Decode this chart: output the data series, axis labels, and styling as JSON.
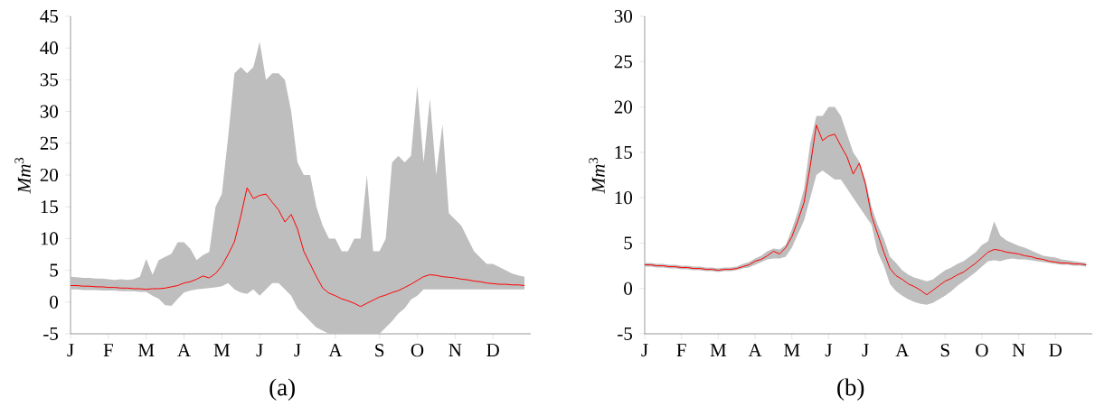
{
  "chart_data": [
    {
      "type": "line",
      "ylabel": "*Mm*$^{3}$",
      "annotations": [
        "(a)"
      ],
      "categories": [
        "J",
        null,
        null,
        null,
        null,
        null,
        "F",
        null,
        null,
        null,
        null,
        null,
        "M",
        null,
        null,
        null,
        null,
        null,
        "A",
        null,
        null,
        null,
        null,
        null,
        "M",
        null,
        null,
        null,
        null,
        null,
        "J",
        null,
        null,
        null,
        null,
        null,
        "J",
        null,
        null,
        null,
        null,
        null,
        "A",
        null,
        null,
        null,
        null,
        null,
        null,
        "S",
        null,
        null,
        null,
        null,
        null,
        "O",
        null,
        null,
        null,
        null,
        null,
        "N",
        null,
        null,
        null,
        null,
        null,
        "D",
        null,
        null,
        null,
        null,
        null
      ],
      "ylim": [
        -5,
        45
      ],
      "yticks": [
        -5,
        0,
        5,
        10,
        15,
        20,
        25,
        30,
        35,
        40,
        45
      ],
      "series": [
        {
          "color": "#ff0000",
          "values": [
            2.6,
            2.6,
            2.5,
            2.5,
            2.4,
            2.4,
            2.3,
            2.3,
            2.2,
            2.2,
            2.1,
            2.1,
            2.0,
            2.1,
            2.1,
            2.2,
            2.4,
            2.6,
            3.0,
            3.2,
            3.6,
            4.1,
            3.8,
            4.5,
            5.7,
            7.5,
            9.5,
            13.5,
            18.0,
            16.3,
            16.8,
            17.0,
            15.7,
            14.5,
            12.6,
            13.8,
            11.5,
            8.0,
            6.0,
            4.0,
            2.2,
            1.4,
            1.0,
            0.5,
            0.2,
            -0.2,
            -0.7,
            -0.2,
            0.3,
            0.8,
            1.1,
            1.5,
            1.8,
            2.3,
            2.8,
            3.4,
            4.0,
            4.3,
            4.2,
            4.0,
            3.9,
            3.8,
            3.6,
            3.5,
            3.3,
            3.2,
            3.0,
            2.9,
            2.8,
            2.8,
            2.7,
            2.7,
            2.6
          ],
          "lower": [
            2.0,
            2.0,
            1.9,
            1.9,
            1.9,
            1.8,
            1.8,
            1.8,
            1.7,
            1.7,
            1.7,
            1.6,
            1.6,
            1.0,
            0.5,
            -0.5,
            -0.6,
            0.5,
            1.5,
            1.8,
            2.0,
            2.1,
            2.2,
            2.3,
            2.5,
            3.0,
            2.0,
            1.5,
            1.3,
            2.0,
            1.0,
            2.0,
            3.0,
            3.0,
            2.0,
            1.0,
            -1.0,
            -2.0,
            -3.0,
            -4.0,
            -4.5,
            -5,
            -5,
            -5,
            -5,
            -5,
            -5,
            -5,
            -5,
            -5,
            -4,
            -3,
            -1.8,
            -1,
            0.4,
            1,
            2,
            2,
            2,
            2,
            2,
            2,
            2,
            2,
            2,
            2,
            2,
            2,
            2,
            2,
            2,
            2,
            2
          ],
          "upper": [
            4.0,
            3.9,
            3.8,
            3.8,
            3.7,
            3.7,
            3.6,
            3.5,
            3.6,
            3.5,
            3.6,
            4.0,
            6.8,
            4.3,
            6.6,
            7.1,
            7.6,
            9.4,
            9.4,
            8.4,
            6.6,
            7.4,
            7.9,
            15,
            17,
            26,
            36,
            37,
            36,
            37,
            41,
            35,
            36,
            36,
            35,
            30,
            22,
            20,
            20,
            15,
            12,
            10,
            10,
            8,
            8,
            10,
            10,
            20,
            8,
            8,
            10,
            22,
            23,
            22,
            23,
            34,
            22,
            32,
            20,
            28,
            14,
            13,
            12,
            10,
            8,
            7,
            6,
            6,
            5.5,
            5,
            4.5,
            4.2,
            4.0
          ]
        }
      ]
    },
    {
      "type": "line",
      "ylabel": "*Mm*$^{3}$",
      "annotations": [
        "(b)"
      ],
      "categories": [
        "J",
        null,
        null,
        null,
        null,
        null,
        "F",
        null,
        null,
        null,
        null,
        null,
        "M",
        null,
        null,
        null,
        null,
        null,
        "A",
        null,
        null,
        null,
        null,
        null,
        "M",
        null,
        null,
        null,
        null,
        null,
        "J",
        null,
        null,
        null,
        null,
        null,
        "J",
        null,
        null,
        null,
        null,
        null,
        "A",
        null,
        null,
        null,
        null,
        null,
        null,
        "S",
        null,
        null,
        null,
        null,
        null,
        "O",
        null,
        null,
        null,
        null,
        null,
        "N",
        null,
        null,
        null,
        null,
        null,
        "D",
        null,
        null,
        null,
        null,
        null
      ],
      "ylim": [
        -5,
        30
      ],
      "yticks": [
        -5,
        0,
        5,
        10,
        15,
        20,
        25,
        30
      ],
      "series": [
        {
          "color": "#ff0000",
          "values": [
            2.6,
            2.6,
            2.5,
            2.5,
            2.4,
            2.4,
            2.3,
            2.3,
            2.2,
            2.2,
            2.1,
            2.1,
            2.0,
            2.1,
            2.1,
            2.2,
            2.4,
            2.6,
            3.0,
            3.2,
            3.6,
            4.1,
            3.8,
            4.5,
            5.7,
            7.5,
            9.5,
            13.5,
            18.0,
            16.3,
            16.8,
            17.0,
            15.7,
            14.5,
            12.6,
            13.8,
            11.5,
            8.0,
            6.0,
            4.0,
            2.2,
            1.4,
            1.0,
            0.5,
            0.2,
            -0.2,
            -0.7,
            -0.2,
            0.3,
            0.8,
            1.1,
            1.5,
            1.8,
            2.3,
            2.8,
            3.4,
            4.0,
            4.3,
            4.2,
            4.0,
            3.9,
            3.8,
            3.6,
            3.5,
            3.3,
            3.2,
            3.0,
            2.9,
            2.8,
            2.8,
            2.7,
            2.7,
            2.6
          ],
          "lower": [
            2.4,
            2.4,
            2.3,
            2.3,
            2.2,
            2.2,
            2.1,
            2.1,
            2.0,
            2.0,
            1.9,
            1.9,
            1.8,
            1.9,
            1.9,
            2.0,
            2.2,
            2.3,
            2.6,
            2.9,
            3.2,
            3.3,
            3.3,
            3.5,
            4.5,
            6,
            7.5,
            10,
            12.5,
            13,
            12.5,
            12,
            12,
            11,
            10,
            9,
            8,
            7,
            4,
            2.5,
            0.5,
            -0.3,
            -0.8,
            -1.2,
            -1.5,
            -1.7,
            -1.8,
            -1.6,
            -1.2,
            -0.8,
            -0.3,
            0.3,
            0.8,
            1.3,
            1.8,
            2.4,
            3.0,
            3.1,
            3.0,
            3.2,
            3.3,
            3.2,
            3.2,
            3.1,
            3.0,
            2.9,
            2.8,
            2.7,
            2.6,
            2.6,
            2.5,
            2.5,
            2.4
          ],
          "upper": [
            2.8,
            2.8,
            2.7,
            2.7,
            2.6,
            2.6,
            2.5,
            2.5,
            2.4,
            2.4,
            2.3,
            2.3,
            2.2,
            2.3,
            2.3,
            2.4,
            2.7,
            2.9,
            3.3,
            3.6,
            4.1,
            4.4,
            4.3,
            4.8,
            6.5,
            8.5,
            11,
            16,
            19,
            19,
            20,
            20,
            19,
            17,
            15,
            14,
            12,
            9,
            7,
            5.5,
            3.5,
            2.8,
            2,
            1.5,
            1.2,
            1.0,
            0.8,
            1.0,
            1.5,
            2.0,
            2.3,
            2.7,
            3.0,
            3.5,
            4.0,
            4.8,
            5.2,
            7.4,
            5.8,
            5.3,
            5.0,
            4.7,
            4.5,
            4.2,
            3.9,
            3.6,
            3.5,
            3.4,
            3.2,
            3.1,
            3.0,
            2.9,
            2.8
          ]
        }
      ]
    }
  ]
}
